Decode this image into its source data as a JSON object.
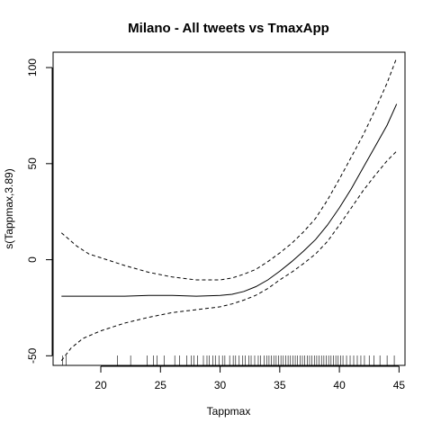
{
  "chart_data": {
    "type": "line",
    "title": "Milano - All tweets vs TmaxApp",
    "xlabel": "Tappmax",
    "ylabel": "s(Tappmax,3.89)",
    "xlim": [
      16,
      45.5
    ],
    "ylim": [
      -55,
      108
    ],
    "x_ticks": [
      20,
      25,
      30,
      35,
      40,
      45
    ],
    "y_ticks": [
      -50,
      0,
      50,
      100
    ],
    "grid": false,
    "series": [
      {
        "role": "estimate",
        "style": "solid",
        "x": [
          16.7,
          18,
          20,
          22,
          24,
          26,
          28,
          30,
          31,
          32,
          33,
          34,
          35,
          36,
          37,
          38,
          39,
          40,
          41,
          42,
          43,
          44,
          44.8
        ],
        "y": [
          -19,
          -19,
          -19,
          -19,
          -18.6,
          -18.6,
          -19,
          -18.6,
          -18,
          -16.5,
          -14,
          -10.5,
          -6,
          -1,
          4.5,
          10.5,
          18,
          27,
          37,
          48,
          59,
          70,
          81
        ]
      },
      {
        "role": "upper",
        "style": "dashed",
        "x": [
          16.7,
          18,
          19,
          20,
          22,
          24,
          26,
          28,
          30,
          31,
          32,
          33,
          34,
          35,
          36,
          37,
          38,
          39,
          40,
          41,
          42,
          43,
          44,
          44.8
        ],
        "y": [
          14,
          7,
          3,
          1,
          -3,
          -6.5,
          -9,
          -10.5,
          -10.5,
          -9.5,
          -7.5,
          -5,
          -1,
          3.5,
          8.5,
          14.5,
          21.5,
          31,
          42,
          53.5,
          65,
          78,
          92,
          105
        ]
      },
      {
        "role": "lower",
        "style": "dashed",
        "x": [
          16.7,
          17.5,
          18.5,
          20,
          22,
          24,
          26,
          28,
          30,
          31,
          32,
          33,
          34,
          35,
          36,
          37,
          38,
          39,
          40,
          41,
          42,
          43,
          44,
          44.8
        ],
        "y": [
          -52.5,
          -46,
          -41,
          -37,
          -33,
          -30,
          -27.5,
          -26,
          -24.5,
          -23,
          -21,
          -18.5,
          -15,
          -10.5,
          -6.5,
          -2,
          3,
          9.5,
          18,
          27,
          36,
          44,
          51.5,
          56.5
        ]
      }
    ],
    "rug": [
      16.8,
      17.1,
      21.4,
      22.5,
      23.9,
      24.4,
      24.7,
      25.3,
      26.2,
      26.6,
      27.2,
      27.6,
      27.8,
      28.1,
      28.6,
      28.9,
      29.1,
      29.4,
      29.6,
      29.9,
      30.2,
      30.4,
      30.8,
      31.1,
      31.3,
      31.6,
      31.9,
      32.1,
      32.4,
      32.6,
      32.9,
      33.2,
      33.4,
      33.7,
      33.9,
      34.1,
      34.3,
      34.5,
      34.7,
      34.9,
      35.1,
      35.3,
      35.5,
      35.7,
      35.9,
      36.1,
      36.3,
      36.5,
      36.7,
      36.9,
      37.1,
      37.3,
      37.5,
      37.7,
      37.9,
      38.1,
      38.3,
      38.5,
      38.7,
      38.9,
      39.1,
      39.3,
      39.5,
      39.7,
      39.9,
      40.1,
      40.3,
      40.6,
      40.9,
      41.2,
      41.5,
      41.8,
      42.1,
      42.5,
      42.9,
      43.4,
      44.0,
      44.6
    ]
  }
}
